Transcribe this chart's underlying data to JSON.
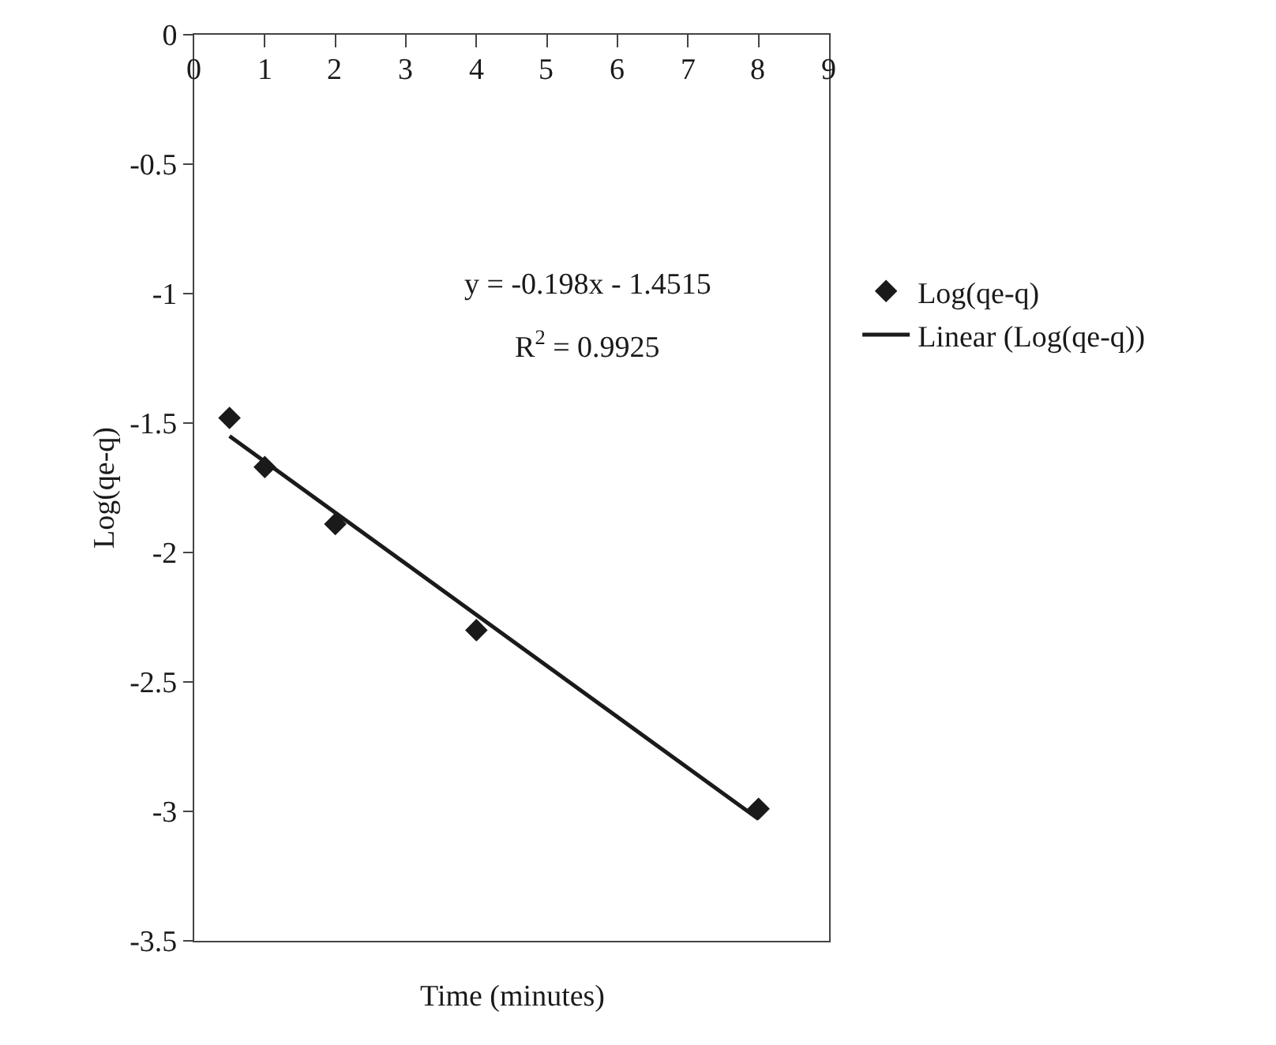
{
  "chart_data": {
    "type": "scatter",
    "xlabel": "Time (minutes)",
    "ylabel": "Log(qe-q)",
    "annotations": [
      "y = -0.198x - 1.4515",
      "R$^{2}$ = 0.9925"
    ],
    "series": [
      {
        "name": "Log(qe-q)",
        "color": "#1a1a1a",
        "marker": "diamond",
        "x": [
          0.5,
          1,
          2,
          4,
          8
        ],
        "values": [
          -1.48,
          -1.67,
          -1.89,
          -2.3,
          -2.99
        ]
      },
      {
        "name": "Linear (Log(qe-q))",
        "type": "line",
        "color": "#1a1a1a",
        "marker": "none",
        "line_style": "solid",
        "x": [
          0.5,
          8
        ],
        "values": [
          -1.55,
          -3.03
        ]
      }
    ],
    "xlim": [
      0,
      9
    ],
    "xticks": [
      0,
      1,
      2,
      3,
      4,
      5,
      6,
      7,
      8,
      9
    ],
    "ylim": [
      -3.5,
      0
    ],
    "yticks": [
      -3.5,
      -3,
      -2.5,
      -2,
      -1.5,
      -1,
      -0.5,
      0
    ],
    "legend": "right"
  }
}
